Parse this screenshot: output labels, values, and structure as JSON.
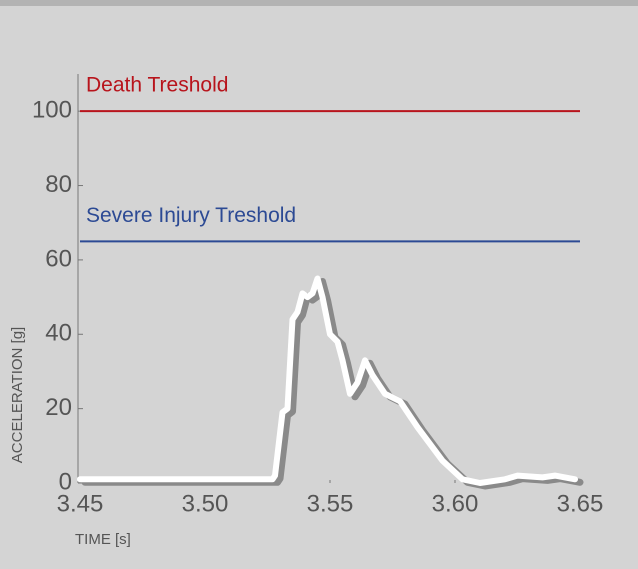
{
  "chart_data": {
    "type": "line",
    "x_label": "TIME [s]",
    "y_label": "ACCELERATION [g]",
    "xlim": [
      3.45,
      3.65
    ],
    "ylim": [
      0,
      110
    ],
    "xticks": [
      3.45,
      {
        "value": 3.5,
        "label": "3.50"
      },
      3.55,
      {
        "value": 3.6,
        "label": "3.60"
      },
      3.65
    ],
    "yticks": [
      0,
      20,
      40,
      60,
      80,
      100
    ],
    "thresholds": [
      {
        "name": "Death Treshold",
        "value": 100,
        "color": "#b8141c"
      },
      {
        "name": "Severe Injury Treshold",
        "value": 65,
        "color": "#2c4a94"
      }
    ],
    "series": [
      {
        "color": "#ffffff",
        "x": [
          3.45,
          3.5,
          3.527,
          3.528,
          3.531,
          3.533,
          3.535,
          3.537,
          3.539,
          3.541,
          3.543,
          3.545,
          3.547,
          3.55,
          3.553,
          3.555,
          3.558,
          3.561,
          3.564,
          3.567,
          3.572,
          3.578,
          3.585,
          3.595,
          3.603,
          3.61,
          3.62,
          3.625,
          3.635,
          3.64,
          3.648
        ],
        "values": [
          1,
          1,
          1,
          2,
          19,
          20,
          44,
          46,
          51,
          50,
          51,
          55,
          50,
          40,
          38,
          33,
          24,
          27,
          33,
          29,
          24,
          22,
          15,
          6,
          1,
          0,
          1,
          2,
          1.5,
          2,
          1
        ]
      }
    ]
  }
}
